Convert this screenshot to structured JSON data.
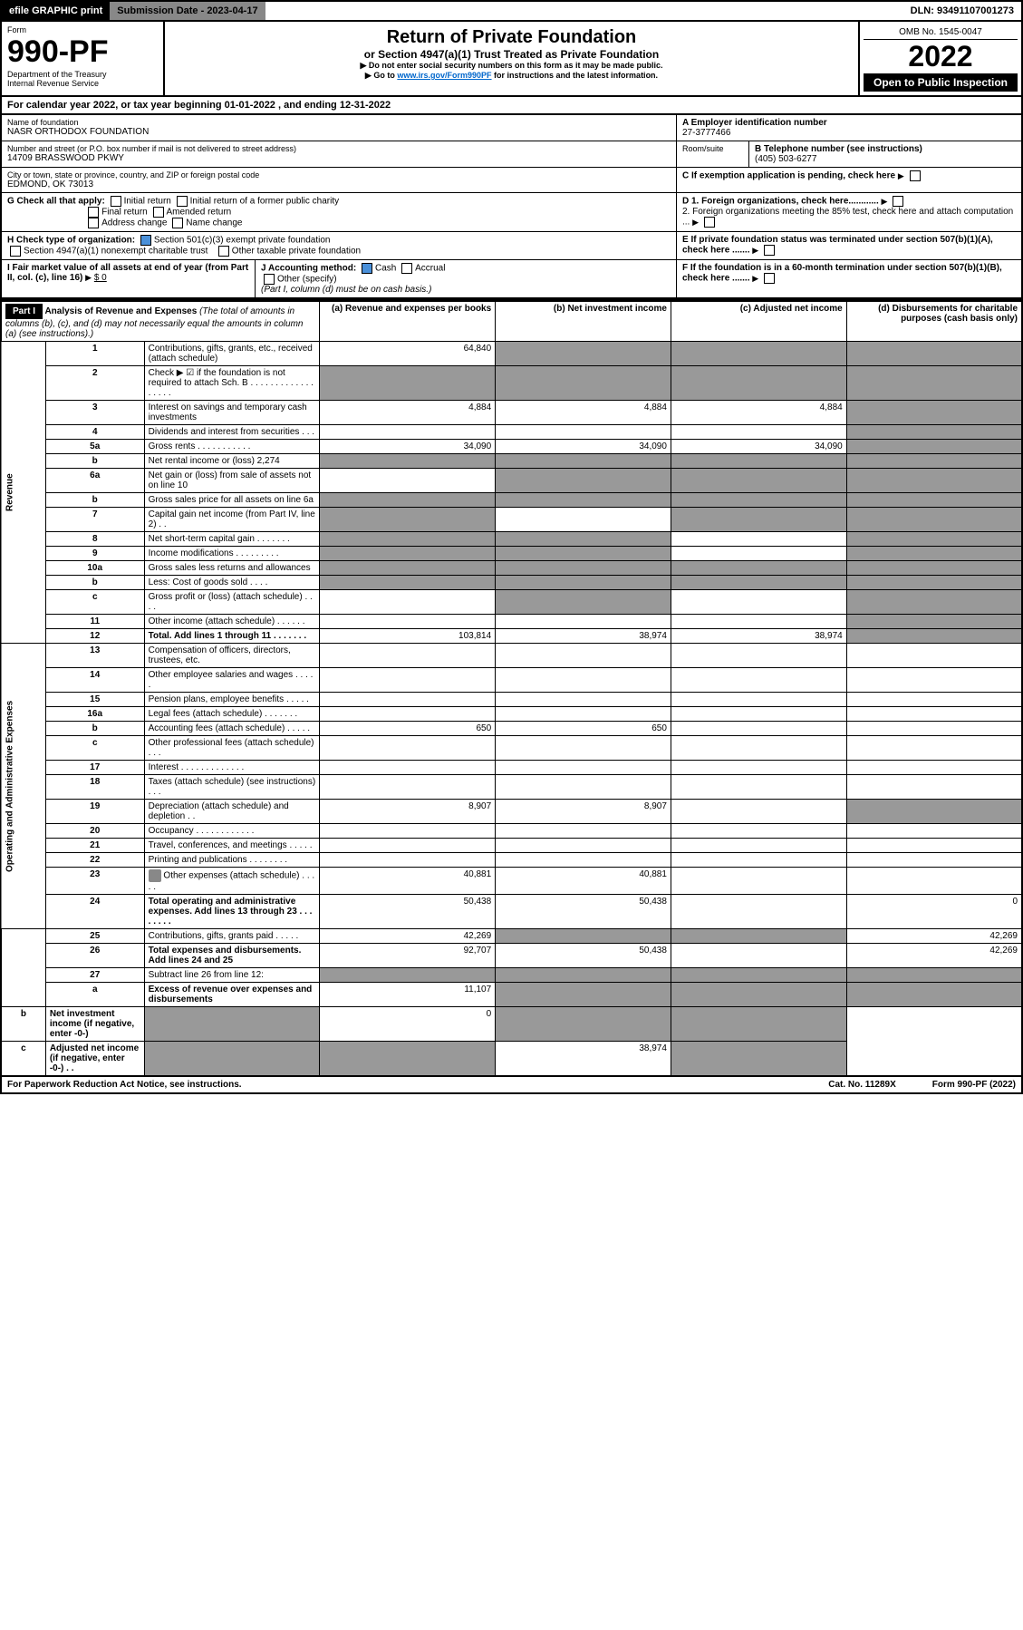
{
  "topbar": {
    "efile": "efile GRAPHIC print",
    "sub_label": "Submission Date - 2023-04-17",
    "dln": "DLN: 93491107001273"
  },
  "header": {
    "form_label": "Form",
    "form_no": "990-PF",
    "dept": "Department of the Treasury",
    "irs": "Internal Revenue Service",
    "title": "Return of Private Foundation",
    "subtitle": "or Section 4947(a)(1) Trust Treated as Private Foundation",
    "note1": "▶ Do not enter social security numbers on this form as it may be made public.",
    "note2_pre": "▶ Go to ",
    "note2_link": "www.irs.gov/Form990PF",
    "note2_post": " for instructions and the latest information.",
    "omb": "OMB No. 1545-0047",
    "year": "2022",
    "open": "Open to Public Inspection"
  },
  "calendar": {
    "text_pre": "For calendar year 2022, or tax year beginning ",
    "begin": "01-01-2022",
    "mid": " , and ending ",
    "end": "12-31-2022"
  },
  "idblock": {
    "name_label": "Name of foundation",
    "name": "NASR ORTHODOX FOUNDATION",
    "addr_label": "Number and street (or P.O. box number if mail is not delivered to street address)",
    "addr": "14709 BRASSWOOD PKWY",
    "room_label": "Room/suite",
    "city_label": "City or town, state or province, country, and ZIP or foreign postal code",
    "city": "EDMOND, OK  73013",
    "a_label": "A Employer identification number",
    "ein": "27-3777466",
    "b_label": "B Telephone number (see instructions)",
    "phone": "(405) 503-6277",
    "c_label": "C If exemption application is pending, check here",
    "d1": "D 1. Foreign organizations, check here............",
    "d2": "2. Foreign organizations meeting the 85% test, check here and attach computation ...",
    "e_label": "E  If private foundation status was terminated under section 507(b)(1)(A), check here .......",
    "f_label": "F  If the foundation is in a 60-month termination under section 507(b)(1)(B), check here .......",
    "g_label": "G Check all that apply:",
    "g_opts": [
      "Initial return",
      "Initial return of a former public charity",
      "Final return",
      "Amended return",
      "Address change",
      "Name change"
    ],
    "h_label": "H Check type of organization:",
    "h1": "Section 501(c)(3) exempt private foundation",
    "h2": "Section 4947(a)(1) nonexempt charitable trust",
    "h3": "Other taxable private foundation",
    "i_label": "I Fair market value of all assets at end of year (from Part II, col. (c), line 16)",
    "i_val": "$ 0",
    "j_label": "J Accounting method:",
    "j_cash": "Cash",
    "j_accrual": "Accrual",
    "j_other": "Other (specify)",
    "j_note": "(Part I, column (d) must be on cash basis.)"
  },
  "part1": {
    "hdr": "Part I",
    "title": "Analysis of Revenue and Expenses",
    "title_note": "(The total of amounts in columns (b), (c), and (d) may not necessarily equal the amounts in column (a) (see instructions).)",
    "col_a": "(a) Revenue and expenses per books",
    "col_b": "(b) Net investment income",
    "col_c": "(c) Adjusted net income",
    "col_d": "(d) Disbursements for charitable purposes (cash basis only)",
    "side_rev": "Revenue",
    "side_exp": "Operating and Administrative Expenses"
  },
  "rows": [
    {
      "n": "1",
      "d": "Contributions, gifts, grants, etc., received (attach schedule)",
      "a": "64,840",
      "b": "",
      "c": "",
      "dd": "",
      "ga": false,
      "gb": true,
      "gc": true,
      "gd": true
    },
    {
      "n": "2",
      "d": "Check ▶ ☑ if the foundation is not required to attach Sch. B  . . . . . . . . . . . . . . . . . .",
      "a": "",
      "b": "",
      "c": "",
      "dd": "",
      "ga": true,
      "gb": true,
      "gc": true,
      "gd": true
    },
    {
      "n": "3",
      "d": "Interest on savings and temporary cash investments",
      "a": "4,884",
      "b": "4,884",
      "c": "4,884",
      "dd": "",
      "ga": false,
      "gb": false,
      "gc": false,
      "gd": true
    },
    {
      "n": "4",
      "d": "Dividends and interest from securities  . . .",
      "a": "",
      "b": "",
      "c": "",
      "dd": "",
      "ga": false,
      "gb": false,
      "gc": false,
      "gd": true
    },
    {
      "n": "5a",
      "d": "Gross rents  . . . . . . . . . . .",
      "a": "34,090",
      "b": "34,090",
      "c": "34,090",
      "dd": "",
      "ga": false,
      "gb": false,
      "gc": false,
      "gd": true
    },
    {
      "n": "b",
      "d": "Net rental income or (loss)                                       2,274",
      "a": "",
      "b": "",
      "c": "",
      "dd": "",
      "ga": true,
      "gb": true,
      "gc": true,
      "gd": true
    },
    {
      "n": "6a",
      "d": "Net gain or (loss) from sale of assets not on line 10",
      "a": "",
      "b": "",
      "c": "",
      "dd": "",
      "ga": false,
      "gb": true,
      "gc": true,
      "gd": true
    },
    {
      "n": "b",
      "d": "Gross sales price for all assets on line 6a",
      "a": "",
      "b": "",
      "c": "",
      "dd": "",
      "ga": true,
      "gb": true,
      "gc": true,
      "gd": true
    },
    {
      "n": "7",
      "d": "Capital gain net income (from Part IV, line 2)  . .",
      "a": "",
      "b": "",
      "c": "",
      "dd": "",
      "ga": true,
      "gb": false,
      "gc": true,
      "gd": true
    },
    {
      "n": "8",
      "d": "Net short-term capital gain  . . . . . . .",
      "a": "",
      "b": "",
      "c": "",
      "dd": "",
      "ga": true,
      "gb": true,
      "gc": false,
      "gd": true
    },
    {
      "n": "9",
      "d": "Income modifications  . . . . . . . . .",
      "a": "",
      "b": "",
      "c": "",
      "dd": "",
      "ga": true,
      "gb": true,
      "gc": false,
      "gd": true
    },
    {
      "n": "10a",
      "d": "Gross sales less returns and allowances",
      "a": "",
      "b": "",
      "c": "",
      "dd": "",
      "ga": true,
      "gb": true,
      "gc": true,
      "gd": true
    },
    {
      "n": "b",
      "d": "Less: Cost of goods sold  . . . .",
      "a": "",
      "b": "",
      "c": "",
      "dd": "",
      "ga": true,
      "gb": true,
      "gc": true,
      "gd": true
    },
    {
      "n": "c",
      "d": "Gross profit or (loss) (attach schedule)  . . . .",
      "a": "",
      "b": "",
      "c": "",
      "dd": "",
      "ga": false,
      "gb": true,
      "gc": false,
      "gd": true
    },
    {
      "n": "11",
      "d": "Other income (attach schedule)  . . . . . .",
      "a": "",
      "b": "",
      "c": "",
      "dd": "",
      "ga": false,
      "gb": false,
      "gc": false,
      "gd": true
    },
    {
      "n": "12",
      "d": "Total. Add lines 1 through 11  . . . . . . .",
      "a": "103,814",
      "b": "38,974",
      "c": "38,974",
      "dd": "",
      "ga": false,
      "gb": false,
      "gc": false,
      "gd": true,
      "bold": true
    },
    {
      "n": "13",
      "d": "Compensation of officers, directors, trustees, etc.",
      "a": "",
      "b": "",
      "c": "",
      "dd": "",
      "ga": false,
      "gb": false,
      "gc": false,
      "gd": false
    },
    {
      "n": "14",
      "d": "Other employee salaries and wages  . . . . .",
      "a": "",
      "b": "",
      "c": "",
      "dd": "",
      "ga": false,
      "gb": false,
      "gc": false,
      "gd": false
    },
    {
      "n": "15",
      "d": "Pension plans, employee benefits  . . . . .",
      "a": "",
      "b": "",
      "c": "",
      "dd": "",
      "ga": false,
      "gb": false,
      "gc": false,
      "gd": false
    },
    {
      "n": "16a",
      "d": "Legal fees (attach schedule)  . . . . . . .",
      "a": "",
      "b": "",
      "c": "",
      "dd": "",
      "ga": false,
      "gb": false,
      "gc": false,
      "gd": false
    },
    {
      "n": "b",
      "d": "Accounting fees (attach schedule)  . . . . .",
      "a": "650",
      "b": "650",
      "c": "",
      "dd": "",
      "ga": false,
      "gb": false,
      "gc": false,
      "gd": false
    },
    {
      "n": "c",
      "d": "Other professional fees (attach schedule)  . . .",
      "a": "",
      "b": "",
      "c": "",
      "dd": "",
      "ga": false,
      "gb": false,
      "gc": false,
      "gd": false
    },
    {
      "n": "17",
      "d": "Interest  . . . . . . . . . . . . .",
      "a": "",
      "b": "",
      "c": "",
      "dd": "",
      "ga": false,
      "gb": false,
      "gc": false,
      "gd": false
    },
    {
      "n": "18",
      "d": "Taxes (attach schedule) (see instructions)  . . .",
      "a": "",
      "b": "",
      "c": "",
      "dd": "",
      "ga": false,
      "gb": false,
      "gc": false,
      "gd": false
    },
    {
      "n": "19",
      "d": "Depreciation (attach schedule) and depletion  . .",
      "a": "8,907",
      "b": "8,907",
      "c": "",
      "dd": "",
      "ga": false,
      "gb": false,
      "gc": false,
      "gd": true
    },
    {
      "n": "20",
      "d": "Occupancy  . . . . . . . . . . . .",
      "a": "",
      "b": "",
      "c": "",
      "dd": "",
      "ga": false,
      "gb": false,
      "gc": false,
      "gd": false
    },
    {
      "n": "21",
      "d": "Travel, conferences, and meetings  . . . . .",
      "a": "",
      "b": "",
      "c": "",
      "dd": "",
      "ga": false,
      "gb": false,
      "gc": false,
      "gd": false
    },
    {
      "n": "22",
      "d": "Printing and publications  . . . . . . . .",
      "a": "",
      "b": "",
      "c": "",
      "dd": "",
      "ga": false,
      "gb": false,
      "gc": false,
      "gd": false
    },
    {
      "n": "23",
      "d": "Other expenses (attach schedule)  . . . . .",
      "a": "40,881",
      "b": "40,881",
      "c": "",
      "dd": "",
      "ga": false,
      "gb": false,
      "gc": false,
      "gd": false,
      "icon": true
    },
    {
      "n": "24",
      "d": "Total operating and administrative expenses. Add lines 13 through 23  . . . . . . . .",
      "a": "50,438",
      "b": "50,438",
      "c": "",
      "dd": "0",
      "ga": false,
      "gb": false,
      "gc": false,
      "gd": false,
      "bold": true
    },
    {
      "n": "25",
      "d": "Contributions, gifts, grants paid  . . . . .",
      "a": "42,269",
      "b": "",
      "c": "",
      "dd": "42,269",
      "ga": false,
      "gb": true,
      "gc": true,
      "gd": false
    },
    {
      "n": "26",
      "d": "Total expenses and disbursements. Add lines 24 and 25",
      "a": "92,707",
      "b": "50,438",
      "c": "",
      "dd": "42,269",
      "ga": false,
      "gb": false,
      "gc": false,
      "gd": false,
      "bold": true
    },
    {
      "n": "27",
      "d": "Subtract line 26 from line 12:",
      "a": "",
      "b": "",
      "c": "",
      "dd": "",
      "ga": true,
      "gb": true,
      "gc": true,
      "gd": true
    },
    {
      "n": "a",
      "d": "Excess of revenue over expenses and disbursements",
      "a": "11,107",
      "b": "",
      "c": "",
      "dd": "",
      "ga": false,
      "gb": true,
      "gc": true,
      "gd": true,
      "bold": true
    },
    {
      "n": "b",
      "d": "Net investment income (if negative, enter -0-)",
      "a": "",
      "b": "0",
      "c": "",
      "dd": "",
      "ga": true,
      "gb": false,
      "gc": true,
      "gd": true,
      "bold": true
    },
    {
      "n": "c",
      "d": "Adjusted net income (if negative, enter -0-)  . .",
      "a": "",
      "b": "",
      "c": "38,974",
      "dd": "",
      "ga": true,
      "gb": true,
      "gc": false,
      "gd": true,
      "bold": true
    }
  ],
  "footer": {
    "left": "For Paperwork Reduction Act Notice, see instructions.",
    "mid": "Cat. No. 11289X",
    "right": "Form 990-PF (2022)"
  },
  "colors": {
    "black": "#000000",
    "gray": "#999999",
    "blue_check": "#4a90d9",
    "link": "#0066cc"
  }
}
